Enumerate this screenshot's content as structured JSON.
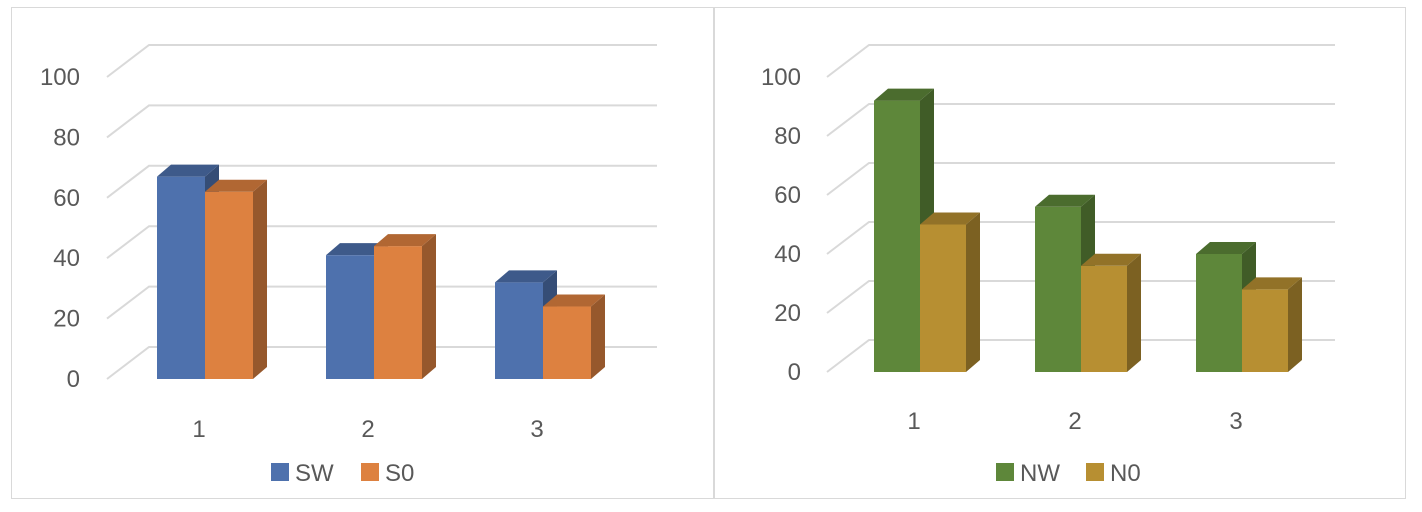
{
  "chart_data": [
    {
      "type": "bar",
      "style": "3d-clustered-column",
      "categories": [
        "1",
        "2",
        "3"
      ],
      "series": [
        {
          "name": "SW",
          "values": [
            67,
            41,
            32
          ],
          "color": "#4e71ad"
        },
        {
          "name": "S0",
          "values": [
            62,
            44,
            24
          ],
          "color": "#dd8140"
        }
      ],
      "ylim": [
        0,
        100
      ],
      "yticks": [
        "0",
        "20",
        "40",
        "60",
        "80",
        "100"
      ],
      "grid": true,
      "legend": "bottom"
    },
    {
      "type": "bar",
      "style": "3d-clustered-column",
      "categories": [
        "1",
        "2",
        "3"
      ],
      "series": [
        {
          "name": "NW",
          "values": [
            92,
            56,
            40
          ],
          "color": "#5e873a"
        },
        {
          "name": "N0",
          "values": [
            50,
            36,
            28
          ],
          "color": "#b78f32"
        }
      ],
      "ylim": [
        0,
        100
      ],
      "yticks": [
        "0",
        "20",
        "40",
        "60",
        "80",
        "100"
      ],
      "grid": true,
      "legend": "bottom"
    }
  ]
}
